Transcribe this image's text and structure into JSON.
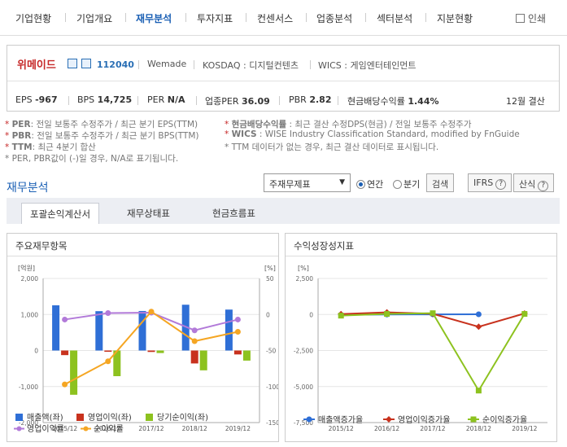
{
  "nav": {
    "items": [
      "기업현황",
      "기업개요",
      "재무분석",
      "투자지표",
      "컨센서스",
      "업종분석",
      "섹터분석",
      "지분현황"
    ],
    "active_index": 2,
    "print_label": "인쇄"
  },
  "company": {
    "name": "위메이드",
    "code": "112040",
    "english_name": "Wemade",
    "market": "KOSDAQ : 디지털컨텐츠",
    "wics": "WICS : 게임엔터테인먼트",
    "metrics": {
      "eps_label": "EPS",
      "eps": "-967",
      "bps_label": "BPS",
      "bps": "14,725",
      "per_label": "PER",
      "per": "N/A",
      "ind_per_label": "업종PER",
      "ind_per": "36.09",
      "pbr_label": "PBR",
      "pbr": "2.82",
      "div_label": "현금배당수익률",
      "div": "1.44%",
      "fiscal": "12월 결산"
    }
  },
  "notes": {
    "per_key": "PER",
    "per_text": ": 전일 보통주 수정주가 / 최근 분기 EPS(TTM)",
    "pbr_key": "PBR",
    "pbr_text": ": 전일 보통주 수정주가 / 최근 분기 BPS(TTM)",
    "ttm_key": "TTM",
    "ttm_text": ": 최근 4분기 합산",
    "neg_text": "* PER, PBR값이 (-)일 경우, N/A로 표기됩니다.",
    "div_key": "현금배당수익률",
    "div_text": " : 최근 결산 수정DPS(현금) / 전일 보통주 수정주가",
    "wics_key": "WICS",
    "wics_text": " : WISE Industry Classification Standard, modified by FnGuide",
    "ttm_none_text": "* TTM 데이터가 없는 경우, 최근 결산 데이터로 표시됩니다."
  },
  "section": {
    "title": "재무분석",
    "select_value": "주재무제표",
    "radio_annual": "연간",
    "radio_quarter": "분기",
    "search_label": "검색",
    "ifrs_label": "IFRS",
    "formula_label": "산식",
    "help_glyph": "?"
  },
  "tabs": [
    "포괄손익계산서",
    "재무상태표",
    "현금흐름표"
  ],
  "chart_data": [
    {
      "type": "bar",
      "title": "주요재무항목",
      "categories": [
        "2015/12",
        "2016/12",
        "2017/12",
        "2018/12",
        "2019/12"
      ],
      "ylabel_left": "[억원]",
      "ylabel_right": "[%]",
      "ylim_left": [
        -2000,
        2000
      ],
      "yticks_left": [
        "2,000",
        "1,000",
        "0",
        "-1,000",
        "-2,000"
      ],
      "ylim_right": [
        -150,
        50
      ],
      "yticks_right": [
        "50",
        "0",
        "-50",
        "-100",
        "-150"
      ],
      "bars": [
        {
          "name": "매출액(좌)",
          "color": "#2f6fd6",
          "values": [
            1255,
            1092,
            1097,
            1271,
            1136
          ]
        },
        {
          "name": "영업이익(좌)",
          "color": "#c8321e",
          "values": [
            -128,
            -35,
            -40,
            -359,
            -109
          ]
        },
        {
          "name": "당기순이익(좌)",
          "color": "#8dc21f",
          "values": [
            -1228,
            -712,
            -70,
            -550,
            -280
          ]
        }
      ],
      "lines": [
        {
          "name": "영업이익률",
          "color": "#b27ad9",
          "values": [
            -7,
            2,
            2.5,
            -22,
            -7
          ]
        },
        {
          "name": "순이익률",
          "color": "#f5a623",
          "values": [
            -97,
            -65,
            4,
            -37,
            -24
          ]
        }
      ]
    },
    {
      "type": "line",
      "title": "수익성장성지표",
      "categories": [
        "2015/12",
        "2016/12",
        "2017/12",
        "2018/12",
        "2019/12"
      ],
      "ylabel": "[%]",
      "ylim": [
        -7500,
        2500
      ],
      "yticks": [
        "2,500",
        "0",
        "-2,500",
        "-5,000",
        "-7,500"
      ],
      "series": [
        {
          "name": "매출액증가율",
          "color": "#2f6fd6",
          "marker": "circle",
          "values": [
            -20,
            0,
            10,
            16,
            null
          ]
        },
        {
          "name": "영업이익증가율",
          "color": "#c8321e",
          "marker": "diamond",
          "values": [
            30,
            150,
            50,
            -850,
            70
          ]
        },
        {
          "name": "순이익증가율",
          "color": "#8dc21f",
          "marker": "square",
          "values": [
            -80,
            40,
            90,
            -5280,
            40
          ]
        }
      ]
    }
  ]
}
